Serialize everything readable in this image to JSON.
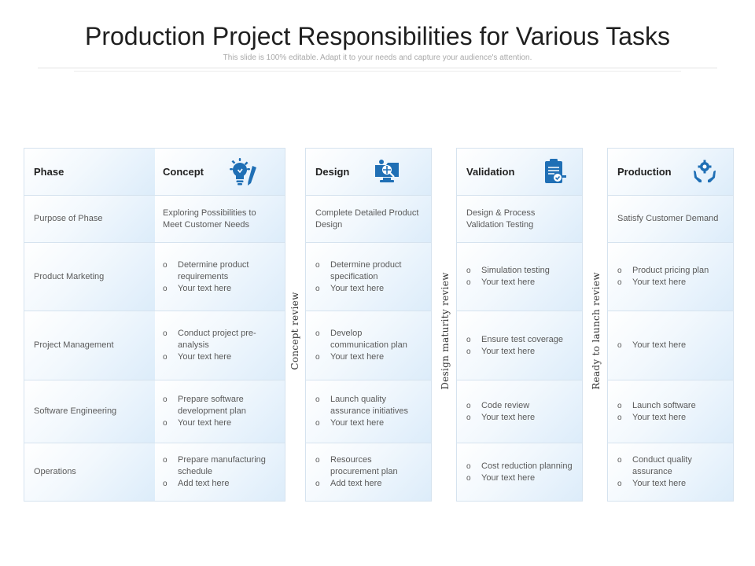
{
  "page": {
    "title": "Production Project Responsibilities for Various Tasks",
    "subtitle": "This slide is 100% editable. Adapt it to your needs and capture your audience's attention."
  },
  "rows": {
    "header": "Phase",
    "labels": [
      "Purpose of Phase",
      "Product Marketing",
      "Project Management",
      "Software Engineering",
      "Operations"
    ]
  },
  "phases": [
    {
      "name": "Concept",
      "icon": "lightbulb-pencil-icon",
      "purpose": "Exploring Possibilities to Meet Customer Needs",
      "items": [
        [
          "Determine product requirements",
          "Your text here"
        ],
        [
          "Conduct project pre-analysis",
          "Your text here"
        ],
        [
          "Prepare software development plan",
          "Your text here"
        ],
        [
          "Prepare manufacturing schedule",
          "Add text here"
        ]
      ]
    },
    {
      "name": "Design",
      "icon": "design-monitor-icon",
      "purpose": "Complete Detailed Product Design",
      "items": [
        [
          "Determine product specification",
          "Your text here"
        ],
        [
          "Develop communication plan",
          "Your text here"
        ],
        [
          "Launch quality assurance initiatives",
          "Your text here"
        ],
        [
          "Resources procurement plan",
          "Add text here"
        ]
      ]
    },
    {
      "name": "Validation",
      "icon": "clipboard-check-icon",
      "purpose": "Design & Process Validation Testing",
      "items": [
        [
          "Simulation testing",
          "Your text here"
        ],
        [
          "Ensure test coverage",
          "Your text here"
        ],
        [
          "Code review",
          "Your text here"
        ],
        [
          "Cost reduction planning",
          "Your text here"
        ]
      ]
    },
    {
      "name": "Production",
      "icon": "hands-gear-icon",
      "purpose": "Satisfy Customer Demand",
      "items": [
        [
          "Product pricing plan",
          "Your text here"
        ],
        [
          "Your text here"
        ],
        [
          "Launch software",
          "Your text here"
        ],
        [
          "Conduct quality assurance",
          "Your text here"
        ]
      ]
    }
  ],
  "reviews": [
    "Concept review",
    "Design maturity review",
    "Ready to launch review"
  ],
  "colors": {
    "accent": "#1f6fb5",
    "border": "#d6e3ef",
    "cell_fill": "#dcecfa"
  }
}
